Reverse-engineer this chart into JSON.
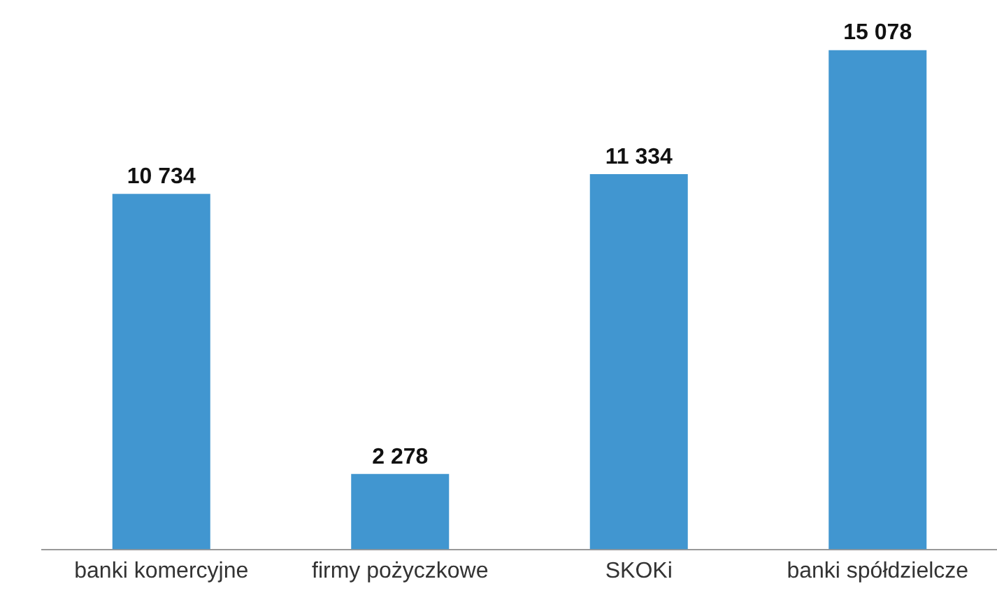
{
  "chart_data": {
    "type": "bar",
    "categories": [
      "banki komercyjne",
      "firmy pożyczkowe",
      "SKOKi",
      "banki spółdzielcze"
    ],
    "values": [
      10734,
      2278,
      11334,
      15078
    ],
    "color": "#4196d0",
    "value_labels": [
      "10 734",
      "2 278",
      "11 334",
      "15 078"
    ],
    "tick_labels": "x",
    "grid": false,
    "legend": false
  }
}
